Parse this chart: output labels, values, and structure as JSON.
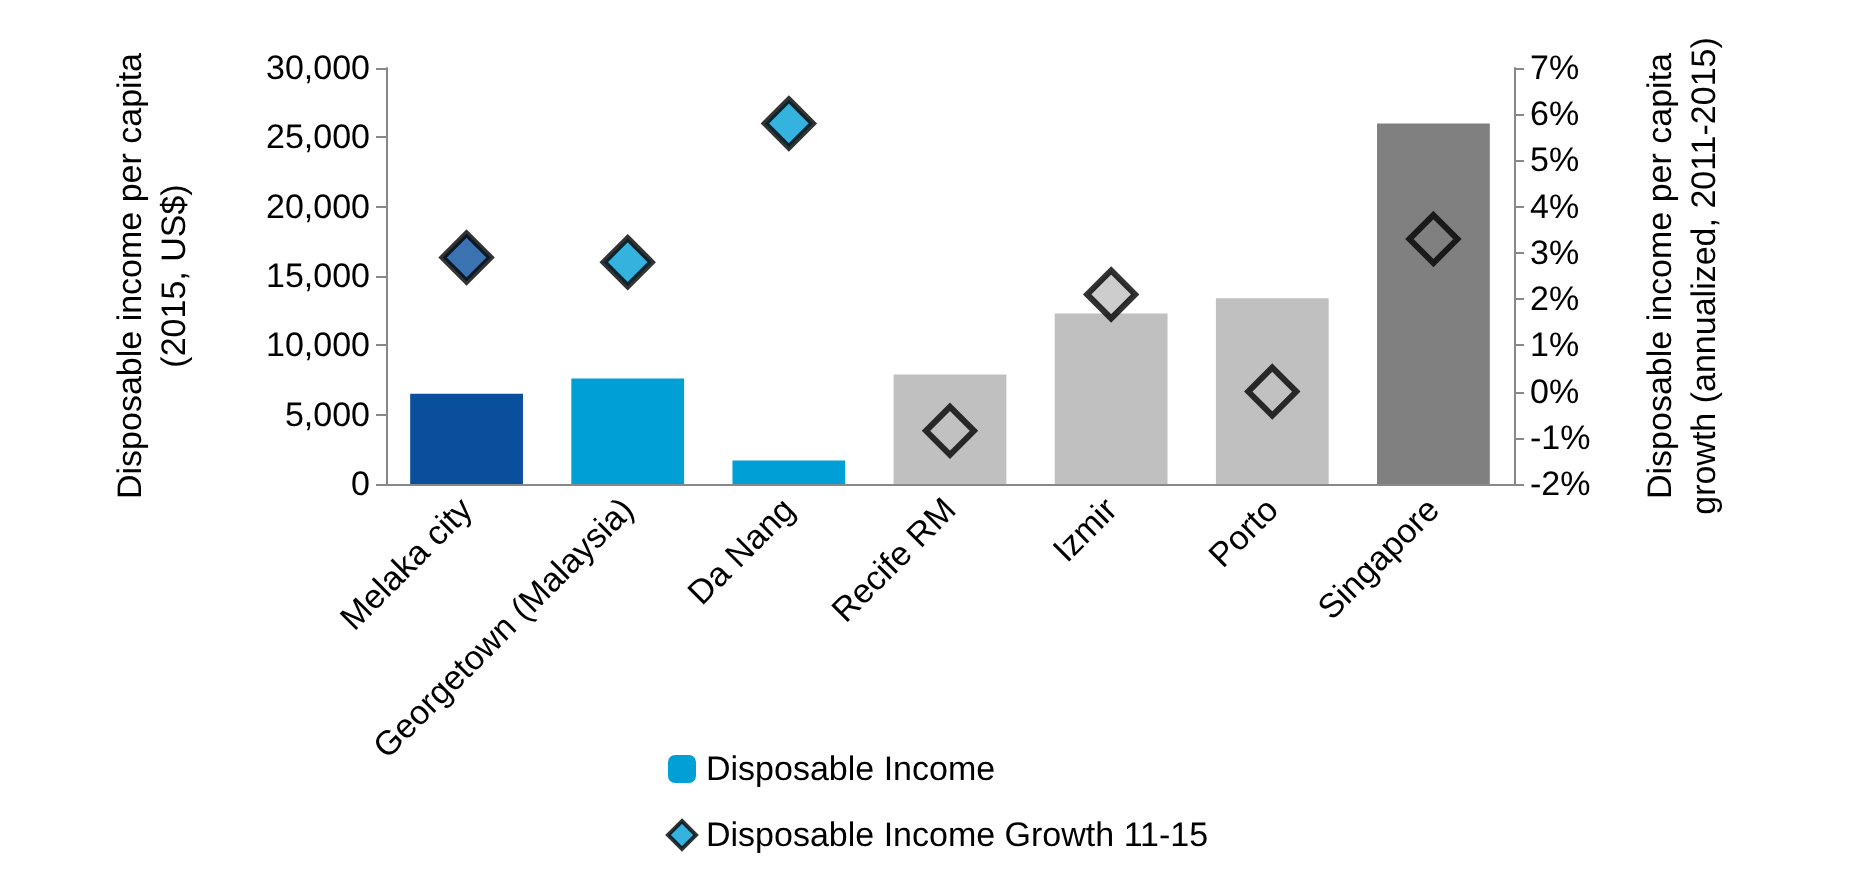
{
  "chart_data": {
    "type": "bar",
    "categories": [
      "Melaka city",
      "Georgetown (Malaysia)",
      "Da Nang",
      "Recife RM",
      "Izmir",
      "Porto",
      "Singapore"
    ],
    "ylabel": "Disposable income per capita\n(2015, US$)",
    "y2label": "Disposable income per capita\ngrowth (annualized, 2011-2015)",
    "series": [
      {
        "name": "Disposable Income",
        "color": "#00a0d6",
        "colors": [
          "#0a4f9c",
          "#00a0d6",
          "#00a0d6",
          "#c0c0c0",
          "#c0c0c0",
          "#c0c0c0",
          "#808080"
        ],
        "values": [
          6500,
          7600,
          1700,
          7900,
          12300,
          13400,
          26000
        ]
      },
      {
        "name": "Disposable Income Growth 11-15",
        "type": "scatter",
        "axis": "y2",
        "marker": "diamond",
        "x": [
          "Melaka city",
          "Georgetown (Malaysia)",
          "Da Nang",
          "Recife RM",
          "Izmir",
          "Porto",
          "Singapore"
        ],
        "color": "#00a0d6",
        "colors": [
          "#0a4f9c",
          "#00a0d6",
          "#00a0d6",
          "#c0c0c0",
          "#c0c0c0",
          "#c0c0c0",
          "#808080"
        ],
        "values": [
          2.9,
          2.8,
          5.8,
          -0.85,
          2.1,
          0.0,
          3.3
        ]
      }
    ],
    "ylim": [
      0,
      30000
    ],
    "yticks": [
      {
        "value": 0,
        "label": "0"
      },
      {
        "value": 5000,
        "label": "5,000"
      },
      {
        "value": 10000,
        "label": "10,000"
      },
      {
        "value": 15000,
        "label": "15,000"
      },
      {
        "value": 20000,
        "label": "20,000"
      },
      {
        "value": 25000,
        "label": "25,000"
      },
      {
        "value": 30000,
        "label": "30,000"
      }
    ],
    "y2lim": [
      -2,
      7
    ],
    "y2ticks": [
      {
        "value": -2,
        "label": "-2%"
      },
      {
        "value": -1,
        "label": "-1%"
      },
      {
        "value": 0,
        "label": "0%"
      },
      {
        "value": 1,
        "label": "1%"
      },
      {
        "value": 2,
        "label": "2%"
      },
      {
        "value": 3,
        "label": "3%"
      },
      {
        "value": 4,
        "label": "4%"
      },
      {
        "value": 5,
        "label": "5%"
      },
      {
        "value": 6,
        "label": "6%"
      },
      {
        "value": 7,
        "label": "7%"
      }
    ],
    "grid": false,
    "legend": "bottom"
  }
}
